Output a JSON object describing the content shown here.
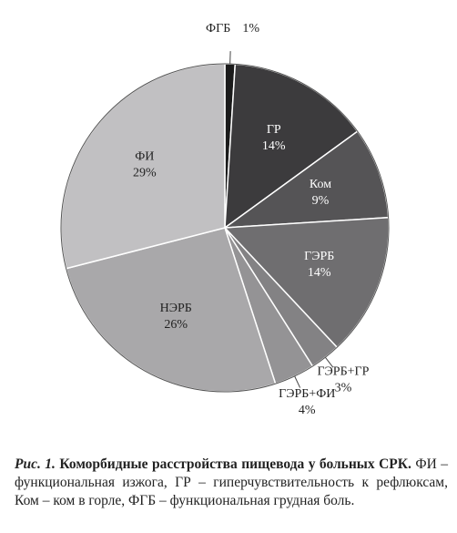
{
  "chart_data": {
    "type": "pie",
    "categories": [
      "ФГБ",
      "ГР",
      "Ком",
      "ГЭРБ",
      "ГЭРБ+ГР",
      "ГЭРБ+ФИ",
      "НЭРБ",
      "ФИ"
    ],
    "values": [
      1,
      14,
      9,
      14,
      3,
      4,
      26,
      29
    ],
    "value_labels": [
      "1%",
      "14%",
      "9%",
      "14%",
      "3%",
      "4%",
      "26%",
      "29%"
    ],
    "colors": [
      "#1b1b1b",
      "#3c3b3d",
      "#555456",
      "#6f6e70",
      "#838284",
      "#949395",
      "#a9a8aa",
      "#c1c0c2"
    ]
  },
  "caption": {
    "label": "Рис. 1.",
    "title": "Коморбидные расстройства пищевода у больных СРК.",
    "text": "ФИ – функциональная изжога, ГР – гиперчувствительность к рефлюксам, Ком – ком в горле, ФГБ – функциональная грудная боль."
  }
}
